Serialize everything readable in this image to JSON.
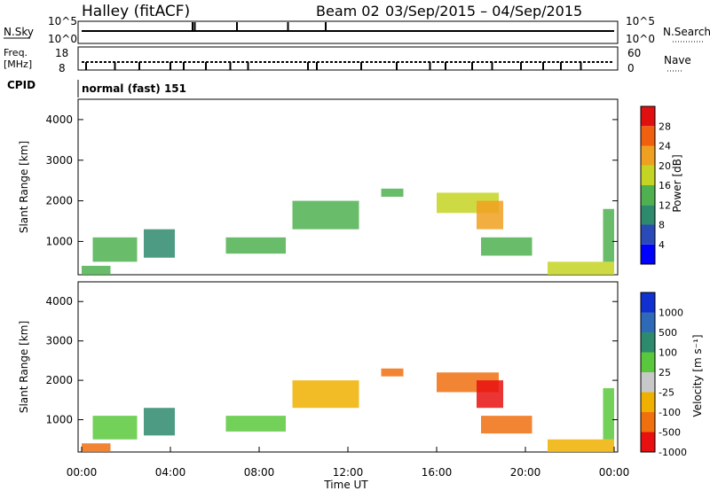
{
  "header": {
    "station": "Halley (fitACF)",
    "beam": "Beam 02",
    "date_range": "03/Sep/2015 – 04/Sep/2015"
  },
  "panel_labels": {
    "nsky": "N.Sky",
    "nsky_top": "10^5",
    "nsky_bottom": "10^0",
    "nsearch": "N.Search",
    "nsearch_top": "10^5",
    "nsearch_bottom": "10^0",
    "freq": "Freq.",
    "freq_unit": "[MHz]",
    "freq_top": "18",
    "freq_bottom": "8",
    "nave": "Nave",
    "nave_top": "60",
    "nave_bottom": "0",
    "cpid": "CPID",
    "cpid_value": "normal (fast) 151"
  },
  "colorbars": {
    "power": {
      "label": "Power [dB]",
      "ticks": [
        "4",
        "8",
        "12",
        "16",
        "20",
        "24",
        "28"
      ],
      "colors": [
        "#0000ff",
        "#2a4ab8",
        "#2e8a6c",
        "#4fb04f",
        "#c4d422",
        "#f0a020",
        "#f06010",
        "#e01010"
      ]
    },
    "velocity": {
      "label": "Velocity [m s⁻¹]",
      "ticks": [
        "1000",
        "500",
        "100",
        "25",
        "-25",
        "-100",
        "-500",
        "-1000"
      ],
      "colors": [
        "#1030d0",
        "#2e6ab8",
        "#2e8a6c",
        "#5ac83c",
        "#c8c8c8",
        "#f0b000",
        "#f07010",
        "#e81010"
      ]
    }
  },
  "axes": {
    "ylabel": "Slant Range [km]",
    "xlabel": "Time UT",
    "x_ticks": [
      "00:00",
      "04:00",
      "08:00",
      "12:00",
      "16:00",
      "20:00",
      "00:00"
    ],
    "y_ticks": [
      "1000",
      "2000",
      "3000",
      "4000"
    ]
  },
  "chart_data": [
    {
      "type": "heatmap",
      "name": "Power",
      "xlim": [
        0,
        24
      ],
      "ylim": [
        180,
        4500
      ],
      "x_unit": "hours UT",
      "y_unit": "km",
      "regions": [
        {
          "t0": 0.0,
          "t1": 1.3,
          "r0": 180,
          "r1": 400,
          "value": 14
        },
        {
          "t0": 0.5,
          "t1": 2.5,
          "r0": 500,
          "r1": 1100,
          "value": 12
        },
        {
          "t0": 2.8,
          "t1": 4.2,
          "r0": 600,
          "r1": 1300,
          "value": 10
        },
        {
          "t0": 6.5,
          "t1": 9.2,
          "r0": 700,
          "r1": 1100,
          "value": 12
        },
        {
          "t0": 9.5,
          "t1": 12.5,
          "r0": 1300,
          "r1": 2000,
          "value": 12
        },
        {
          "t0": 13.5,
          "t1": 14.5,
          "r0": 2100,
          "r1": 2300,
          "value": 12
        },
        {
          "t0": 16.0,
          "t1": 18.8,
          "r0": 1700,
          "r1": 2200,
          "value": 16
        },
        {
          "t0": 17.8,
          "t1": 19.0,
          "r0": 1300,
          "r1": 2000,
          "value": 20
        },
        {
          "t0": 18.0,
          "t1": 20.3,
          "r0": 650,
          "r1": 1100,
          "value": 14
        },
        {
          "t0": 21.0,
          "t1": 24.0,
          "r0": 180,
          "r1": 500,
          "value": 18
        },
        {
          "t0": 23.5,
          "t1": 24.0,
          "r0": 500,
          "r1": 1800,
          "value": 14
        }
      ]
    },
    {
      "type": "heatmap",
      "name": "Velocity",
      "xlim": [
        0,
        24
      ],
      "ylim": [
        180,
        4500
      ],
      "x_unit": "hours UT",
      "y_unit": "km",
      "regions": [
        {
          "t0": 0.0,
          "t1": 1.3,
          "r0": 180,
          "r1": 400,
          "value": -200
        },
        {
          "t0": 0.5,
          "t1": 2.5,
          "r0": 500,
          "r1": 1100,
          "value": 50
        },
        {
          "t0": 2.8,
          "t1": 4.2,
          "r0": 600,
          "r1": 1300,
          "value": 120
        },
        {
          "t0": 6.5,
          "t1": 9.2,
          "r0": 700,
          "r1": 1100,
          "value": 60
        },
        {
          "t0": 9.5,
          "t1": 12.5,
          "r0": 1300,
          "r1": 2000,
          "value": -80
        },
        {
          "t0": 13.5,
          "t1": 14.5,
          "r0": 2100,
          "r1": 2300,
          "value": -150
        },
        {
          "t0": 16.0,
          "t1": 18.8,
          "r0": 1700,
          "r1": 2200,
          "value": -300
        },
        {
          "t0": 17.8,
          "t1": 19.0,
          "r0": 1300,
          "r1": 2000,
          "value": -700
        },
        {
          "t0": 18.0,
          "t1": 20.3,
          "r0": 650,
          "r1": 1100,
          "value": -400
        },
        {
          "t0": 21.0,
          "t1": 24.0,
          "r0": 180,
          "r1": 500,
          "value": -60
        },
        {
          "t0": 23.5,
          "t1": 24.0,
          "r0": 500,
          "r1": 1800,
          "value": 40
        }
      ]
    }
  ]
}
